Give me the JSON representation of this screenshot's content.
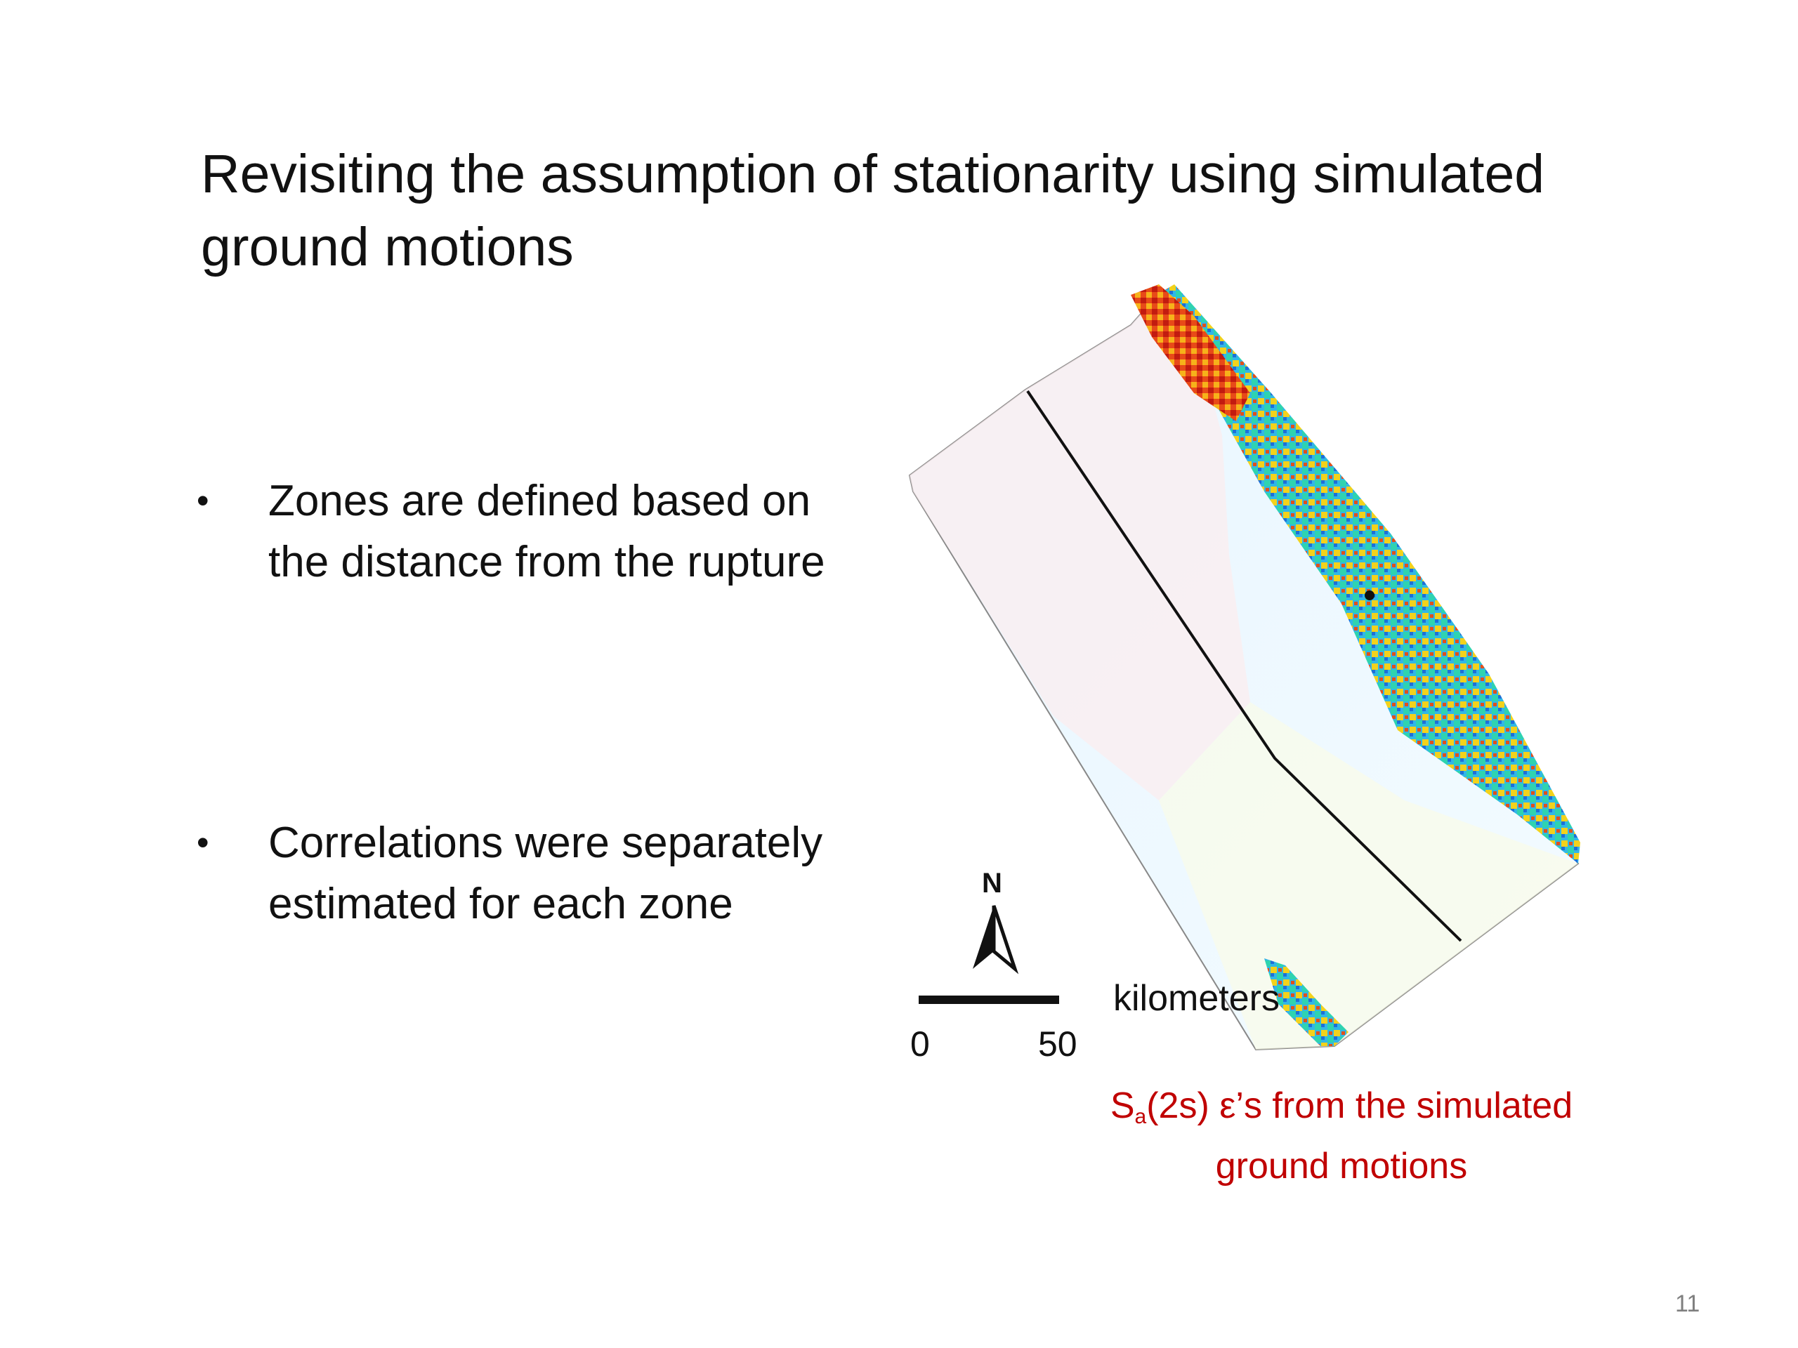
{
  "slide": {
    "title": "Revisiting the assumption of stationarity using simulated ground motions",
    "bullets": [
      {
        "marker": "•",
        "text": "Zones are defined based on the distance from the rupture"
      },
      {
        "marker": "•",
        "text": "Correlations were separately estimated for each zone"
      }
    ],
    "map": {
      "north_label": "N",
      "scale_units": "kilometers",
      "scale_start": "0",
      "scale_end": "50",
      "caption_prefix": "S",
      "caption_sub": "a",
      "caption_rest": "(2s) ε’s from the simulated ground motions"
    },
    "page_number": "11"
  }
}
